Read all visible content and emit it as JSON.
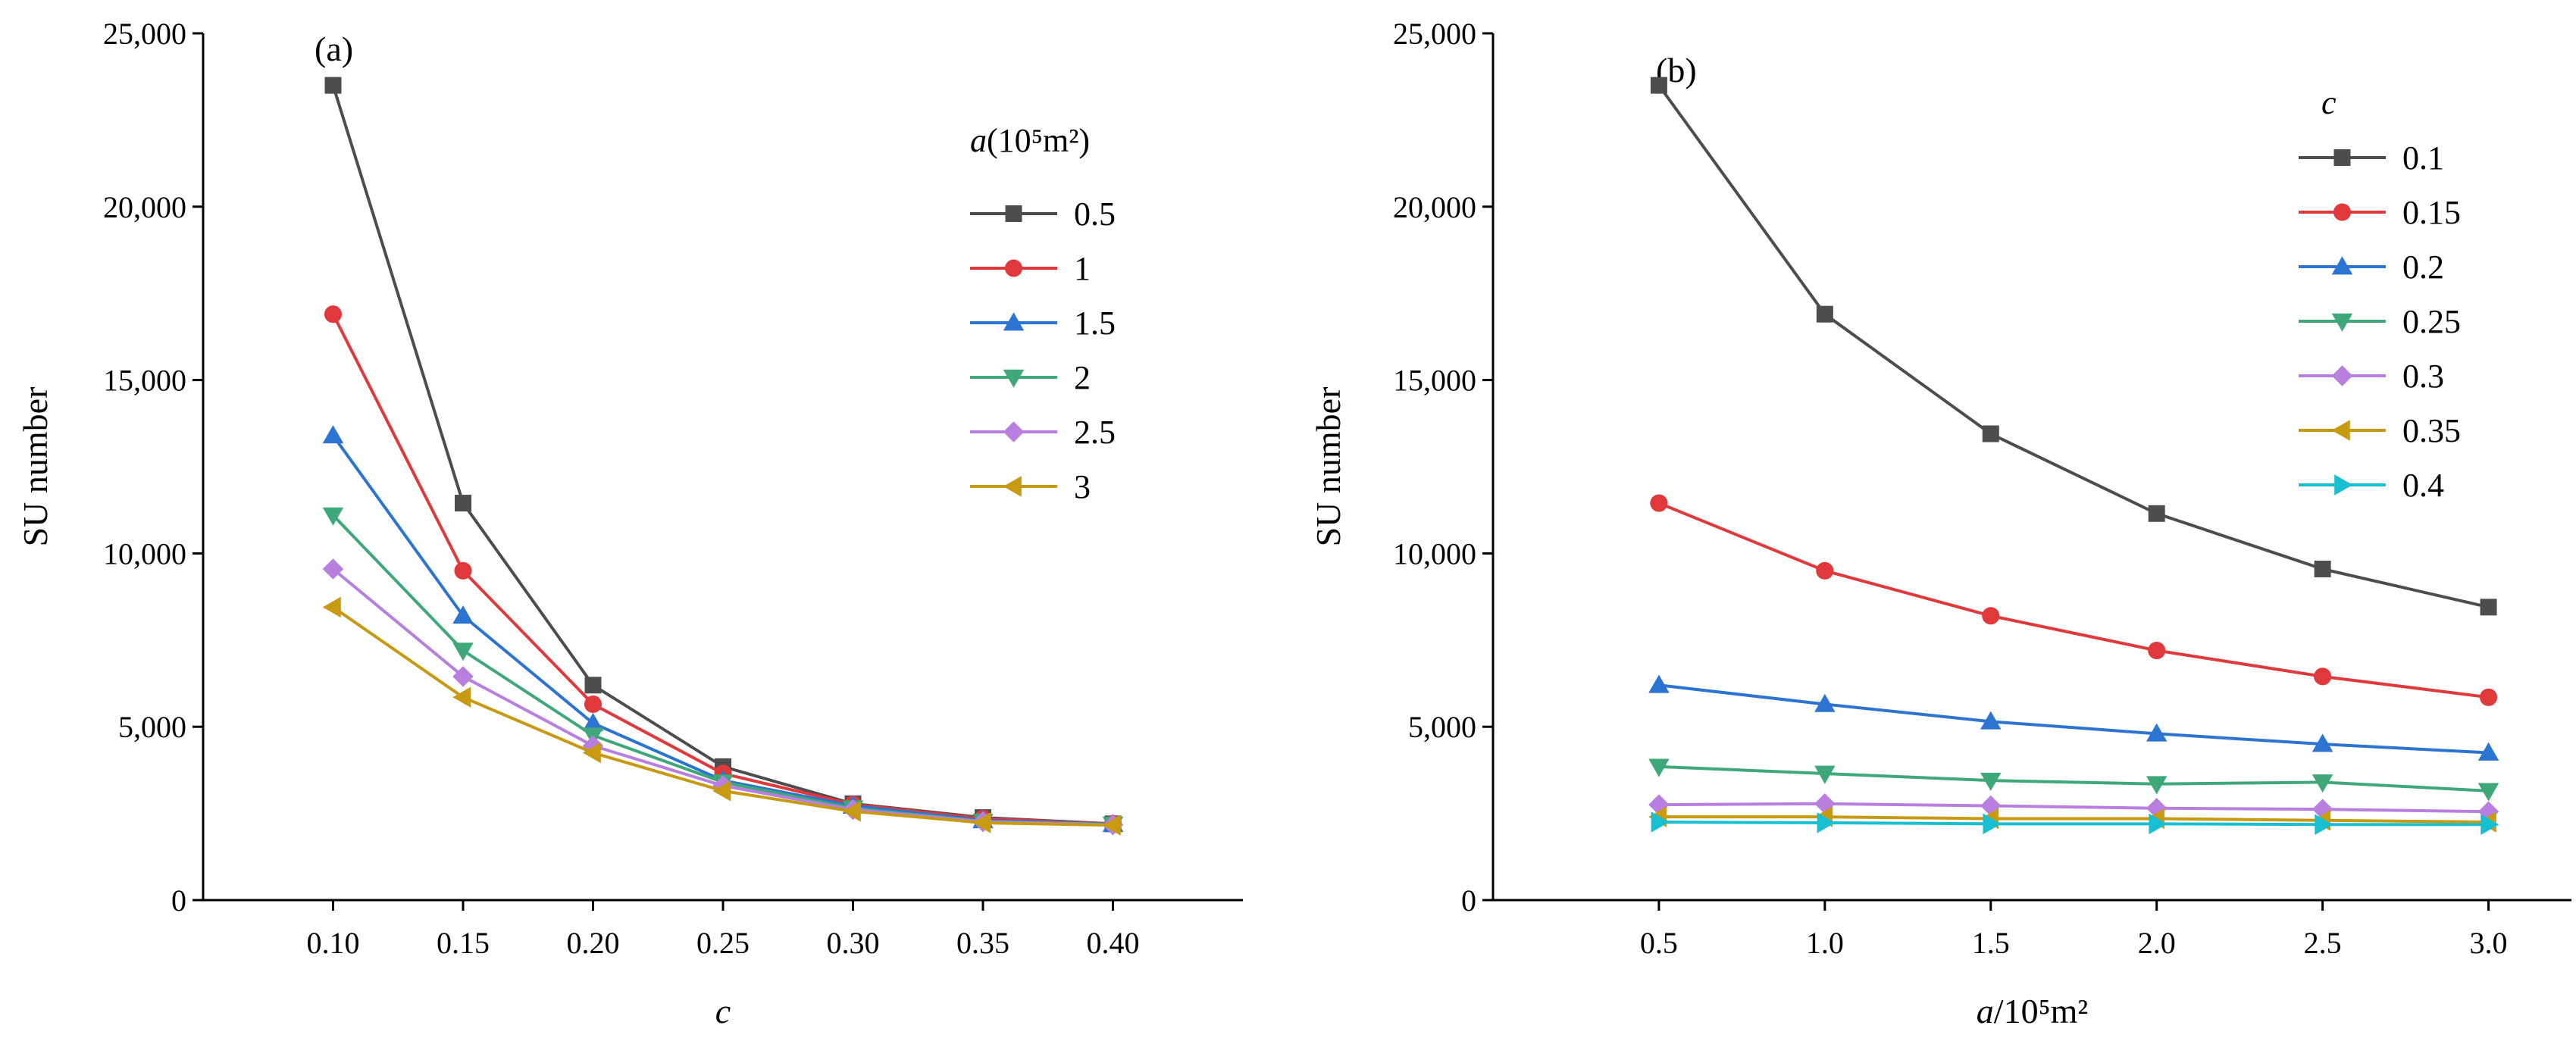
{
  "chart_data": [
    {
      "type": "line",
      "panel_label": "(a)",
      "xlabel": "c",
      "ylabel": "SU number",
      "xlim": [
        0.05,
        0.45
      ],
      "ylim": [
        0,
        25000
      ],
      "x": [
        0.1,
        0.15,
        0.2,
        0.25,
        0.3,
        0.35,
        0.4
      ],
      "x_tick_labels": [
        "0.10",
        "0.15",
        "0.20",
        "0.25",
        "0.30",
        "0.35",
        "0.40"
      ],
      "y_ticks": [
        0,
        5000,
        10000,
        15000,
        20000,
        25000
      ],
      "y_tick_labels": [
        "0",
        "5,000",
        "10,000",
        "15,000",
        "20,000",
        "25,000"
      ],
      "legend_title": "a(10⁵m²)",
      "legend_position": "top-right",
      "series": [
        {
          "name": "0.5",
          "color": "#4d4d4d",
          "marker": "square",
          "values": [
            23500,
            11450,
            6200,
            3850,
            2780,
            2380,
            2200
          ]
        },
        {
          "name": "1",
          "color": "#e0383b",
          "marker": "circle",
          "values": [
            16900,
            9500,
            5650,
            3650,
            2760,
            2350,
            2200
          ]
        },
        {
          "name": "1.5",
          "color": "#2c74d1",
          "marker": "triangle-up",
          "values": [
            13400,
            8200,
            5100,
            3450,
            2720,
            2300,
            2190
          ]
        },
        {
          "name": "2",
          "color": "#3ea87a",
          "marker": "triangle-down",
          "values": [
            11100,
            7200,
            4750,
            3400,
            2650,
            2270,
            2180
          ]
        },
        {
          "name": "2.5",
          "color": "#b97fe0",
          "marker": "diamond",
          "values": [
            9550,
            6450,
            4450,
            3300,
            2610,
            2260,
            2170
          ]
        },
        {
          "name": "3",
          "color": "#c79a12",
          "marker": "triangle-left",
          "values": [
            8450,
            5850,
            4250,
            3150,
            2560,
            2230,
            2160
          ]
        }
      ]
    },
    {
      "type": "line",
      "panel_label": "(b)",
      "xlabel": "a/10⁵m²",
      "ylabel": "SU number",
      "xlim": [
        0.0,
        3.25
      ],
      "ylim": [
        0,
        25000
      ],
      "x": [
        0.5,
        1.0,
        1.5,
        2.0,
        2.5,
        3.0
      ],
      "x_tick_labels": [
        "0.5",
        "1.0",
        "1.5",
        "2.0",
        "2.5",
        "3.0"
      ],
      "y_ticks": [
        0,
        5000,
        10000,
        15000,
        20000,
        25000
      ],
      "y_tick_labels": [
        "0",
        "5,000",
        "10,000",
        "15,000",
        "20,000",
        "25,000"
      ],
      "legend_title": "c",
      "legend_position": "top-right",
      "series": [
        {
          "name": "0.1",
          "color": "#4d4d4d",
          "marker": "square",
          "values": [
            23500,
            16900,
            13450,
            11150,
            9550,
            8450
          ]
        },
        {
          "name": "0.15",
          "color": "#e0383b",
          "marker": "circle",
          "values": [
            11450,
            9500,
            8200,
            7200,
            6450,
            5850
          ]
        },
        {
          "name": "0.2",
          "color": "#2c74d1",
          "marker": "triangle-up",
          "values": [
            6200,
            5650,
            5150,
            4800,
            4500,
            4250
          ]
        },
        {
          "name": "0.25",
          "color": "#3ea87a",
          "marker": "triangle-down",
          "values": [
            3850,
            3650,
            3450,
            3350,
            3400,
            3150
          ]
        },
        {
          "name": "0.3",
          "color": "#b97fe0",
          "marker": "diamond",
          "values": [
            2750,
            2780,
            2720,
            2650,
            2620,
            2550
          ]
        },
        {
          "name": "0.35",
          "color": "#c79a12",
          "marker": "triangle-left",
          "values": [
            2400,
            2400,
            2350,
            2350,
            2300,
            2250
          ]
        },
        {
          "name": "0.4",
          "color": "#17bfd0",
          "marker": "triangle-right",
          "values": [
            2250,
            2230,
            2200,
            2200,
            2180,
            2180
          ]
        }
      ]
    }
  ]
}
